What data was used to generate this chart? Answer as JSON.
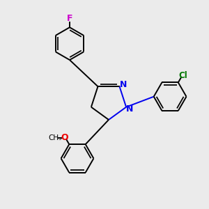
{
  "background_color": "#ebebeb",
  "bond_color": "#000000",
  "N_color": "#0000ee",
  "O_color": "#ee0000",
  "F_color": "#cc00cc",
  "Cl_color": "#007700",
  "label_F": "F",
  "label_Cl": "Cl",
  "label_N": "N",
  "label_O": "O",
  "label_OCH3": "OCH₃"
}
